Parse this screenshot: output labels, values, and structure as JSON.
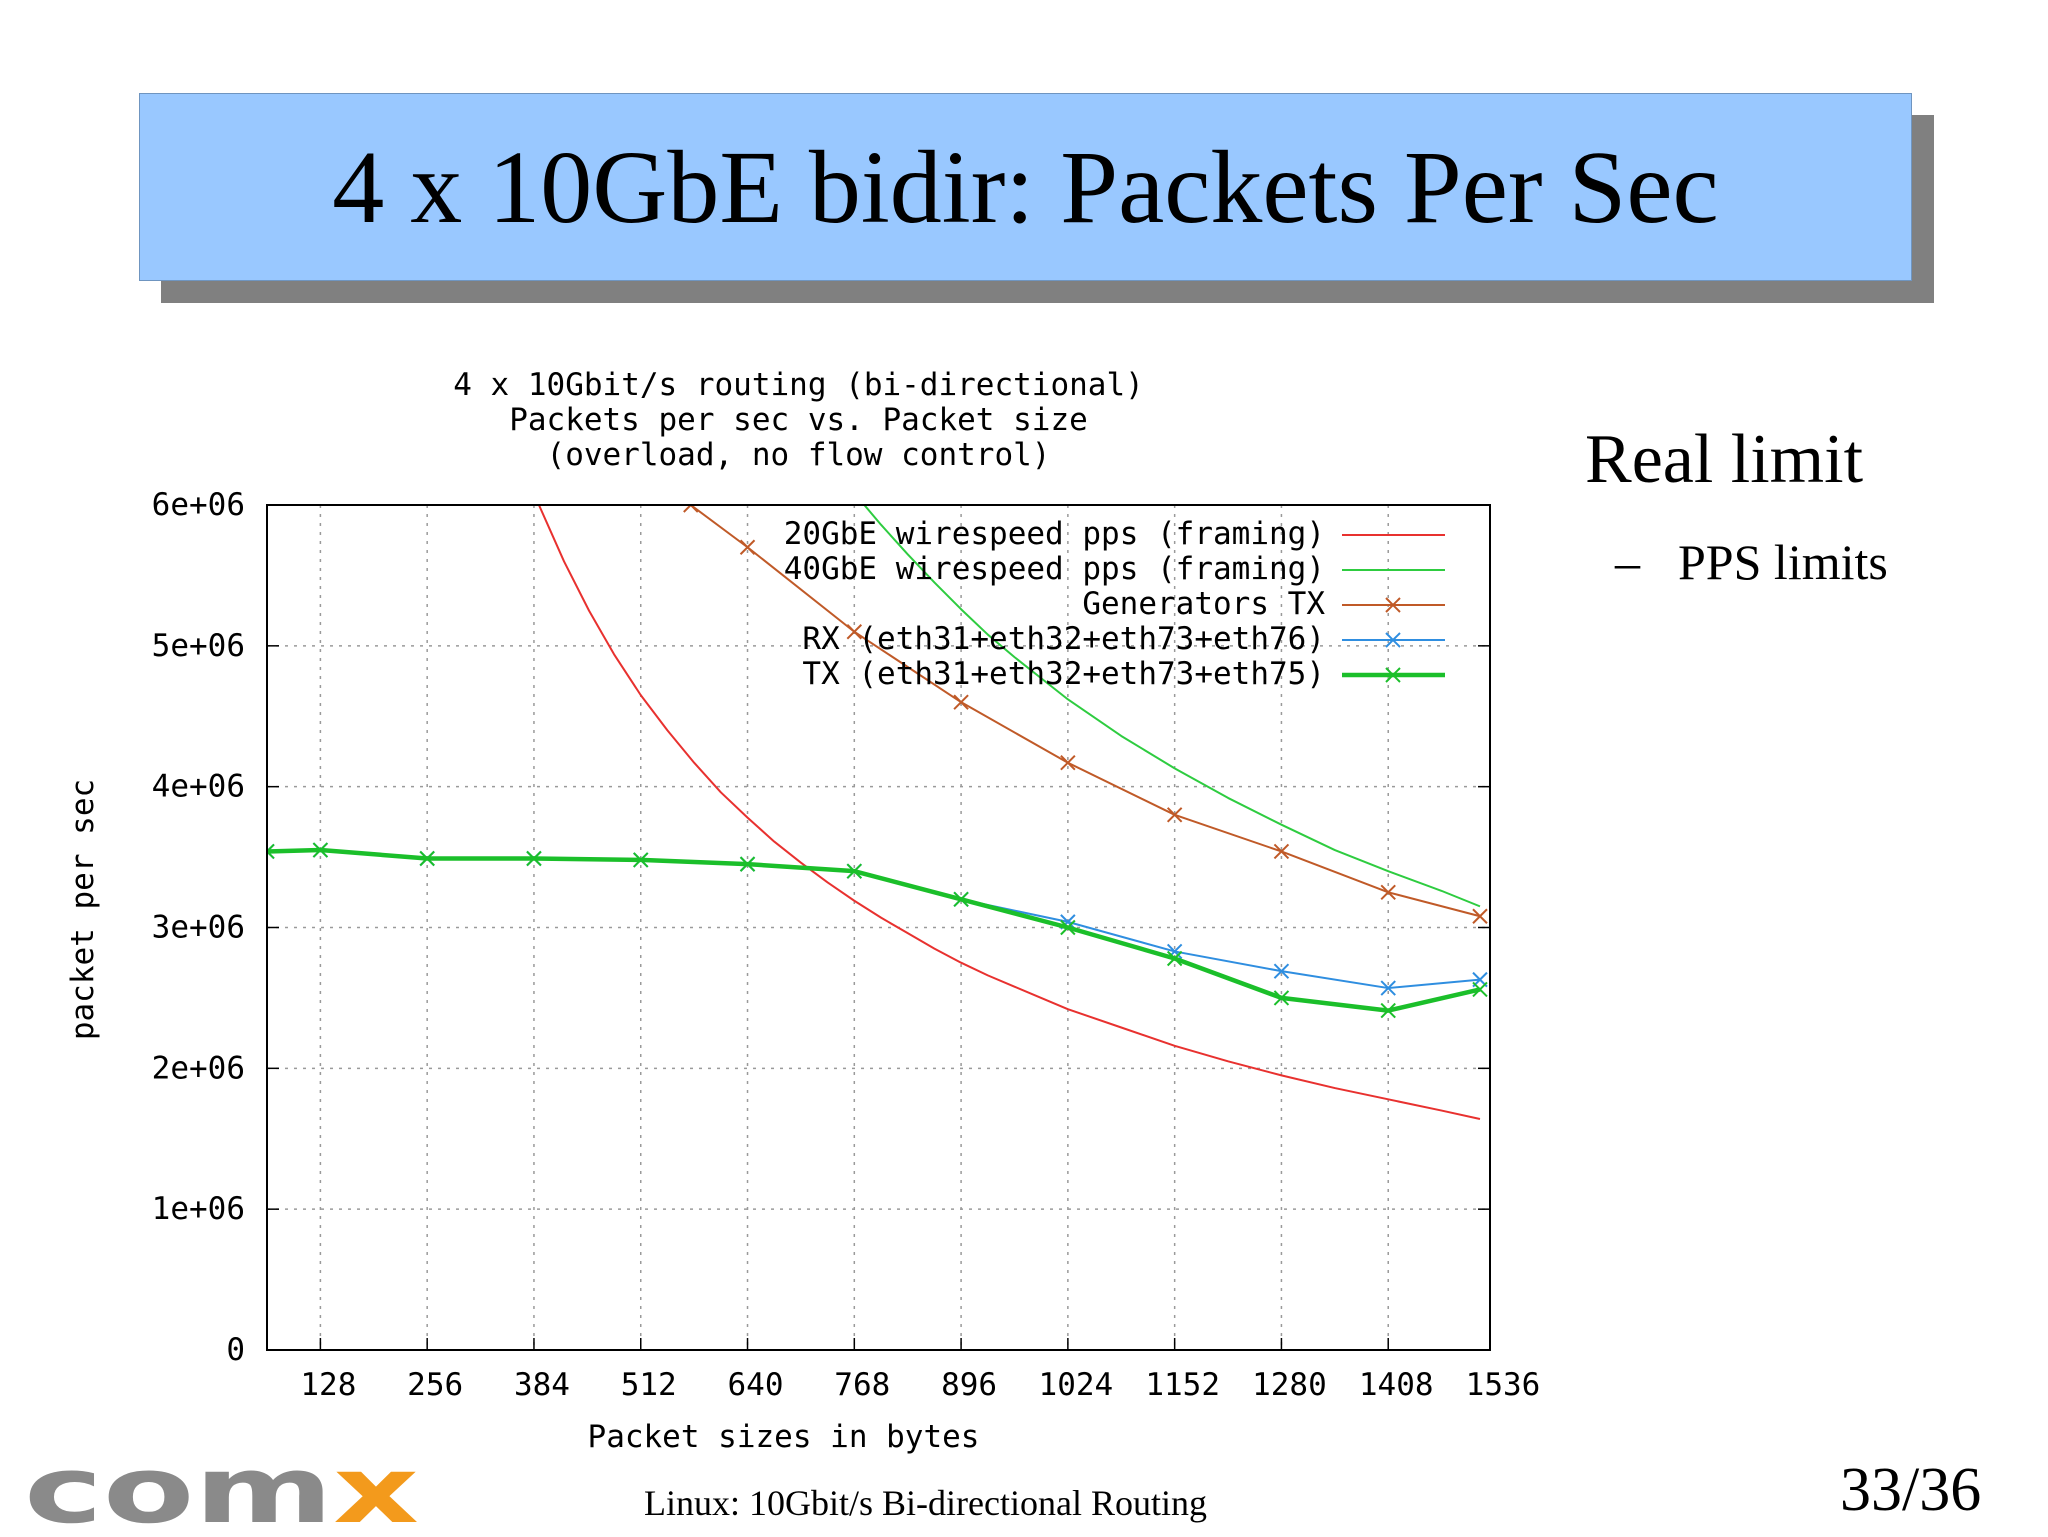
{
  "slide": {
    "title": "4 x 10GbE bidir: Packets Per Sec",
    "side_heading": "Real limit",
    "bullet_dash": "–",
    "bullet": "PPS limits",
    "footer": "Linux: 10Gbit/s Bi-directional Routing",
    "page": "33/36",
    "logo_text": "comx"
  },
  "colors": {
    "title_bg": "#99c8ff",
    "title_shadow": "#808080",
    "wire20": "#e8312f",
    "wire40": "#2ecc40",
    "gen_tx": "#c05a28",
    "rx": "#2f8ee0",
    "tx": "#1bbf2a",
    "logo_gray": "#8a8a8a",
    "logo_orange": "#f39a1c"
  },
  "chart_data": {
    "type": "line",
    "title_lines": [
      "4 x 10Gbit/s routing (bi-directional)",
      "Packets per sec vs. Packet size",
      "(overload, no flow control)"
    ],
    "xlabel": "Packet sizes in bytes",
    "ylabel": "packet per sec",
    "xlim": [
      64,
      1530
    ],
    "ylim": [
      0,
      6000000
    ],
    "xticks": [
      128,
      256,
      384,
      512,
      640,
      768,
      896,
      1024,
      1152,
      1280,
      1408,
      1536
    ],
    "xtick_labels": [
      "128",
      "256",
      "384",
      "512",
      "640",
      "768",
      "896",
      "1024",
      "1152",
      "1280",
      "1408",
      "1536"
    ],
    "yticks": [
      0,
      1000000,
      2000000,
      3000000,
      4000000,
      5000000,
      6000000
    ],
    "ytick_labels": [
      "0",
      "1e+06",
      "2e+06",
      "3e+06",
      "4e+06",
      "5e+06",
      "6e+06"
    ],
    "grid": true,
    "legend_position": "top-right",
    "series": [
      {
        "name": "20GbE wirespeed pps (framing)",
        "key": "wire20",
        "style": "line",
        "x": [
          390,
          420,
          450,
          480,
          512,
          544,
          576,
          608,
          640,
          672,
          704,
          736,
          768,
          800,
          832,
          864,
          896,
          928,
          960,
          992,
          1024,
          1088,
          1152,
          1216,
          1280,
          1344,
          1408,
          1472,
          1518
        ],
        "y": [
          6000000,
          5600000,
          5250000,
          4940000,
          4650000,
          4400000,
          4170000,
          3960000,
          3780000,
          3610000,
          3460000,
          3320000,
          3190000,
          3070000,
          2960000,
          2850000,
          2750000,
          2660000,
          2580000,
          2500000,
          2420000,
          2290000,
          2160000,
          2050000,
          1950000,
          1860000,
          1780000,
          1700000,
          1640000
        ]
      },
      {
        "name": "40GbE wirespeed pps (framing)",
        "key": "wire40",
        "style": "line",
        "x": [
          780,
          800,
          832,
          864,
          896,
          928,
          960,
          992,
          1024,
          1088,
          1152,
          1216,
          1280,
          1344,
          1408,
          1472,
          1518
        ],
        "y": [
          6000000,
          5860000,
          5650000,
          5450000,
          5260000,
          5080000,
          4920000,
          4770000,
          4620000,
          4360000,
          4130000,
          3920000,
          3730000,
          3550000,
          3400000,
          3260000,
          3150000
        ]
      },
      {
        "name": "Generators TX",
        "key": "gen_tx",
        "style": "linespoints",
        "x": [
          572,
          640,
          768,
          896,
          1024,
          1152,
          1280,
          1408,
          1518
        ],
        "y": [
          6000000,
          5700000,
          5100000,
          4600000,
          4170000,
          3800000,
          3540000,
          3250000,
          3080000
        ]
      },
      {
        "name": "RX (eth31+eth32+eth73+eth76)",
        "key": "rx",
        "style": "linespoints",
        "x": [
          64,
          128,
          256,
          384,
          512,
          640,
          768,
          896,
          1024,
          1152,
          1280,
          1408,
          1518
        ],
        "y": [
          3540000,
          3550000,
          3490000,
          3490000,
          3480000,
          3450000,
          3400000,
          3200000,
          3040000,
          2830000,
          2690000,
          2570000,
          2630000
        ]
      },
      {
        "name": "TX (eth31+eth32+eth73+eth75)",
        "key": "tx",
        "style": "linespoints",
        "bold": true,
        "x": [
          64,
          128,
          256,
          384,
          512,
          640,
          768,
          896,
          1024,
          1152,
          1280,
          1408,
          1518
        ],
        "y": [
          3540000,
          3550000,
          3490000,
          3490000,
          3480000,
          3450000,
          3400000,
          3200000,
          3000000,
          2780000,
          2500000,
          2410000,
          2560000
        ]
      }
    ]
  }
}
